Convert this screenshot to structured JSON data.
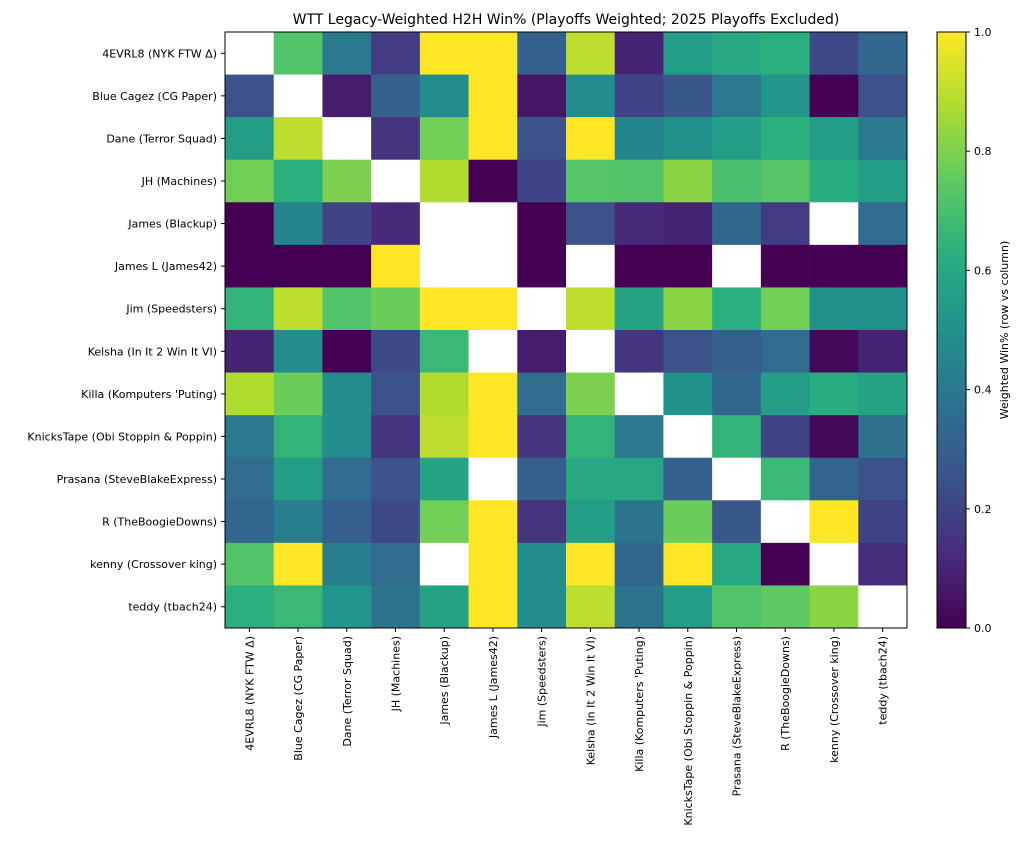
{
  "chart_data": {
    "type": "heatmap",
    "title": "WTT Legacy-Weighted H2H Win% (Playoffs Weighted; 2025 Playoffs Excluded)",
    "xlabel": "",
    "ylabel": "",
    "rows": [
      "4EVRL8 (NYK FTW Δ)",
      "Blue Cagez (CG Paper)",
      "Dane (Terror Squad)",
      "JH (Machines)",
      "James (Blackup)",
      "James L (James42)",
      "Jim (Speedsters)",
      "Kelsha (In It 2 Win It VI)",
      "Killa (Komputers 'Puting)",
      "KnicksTape (Obi Stoppin & Poppin)",
      "Prasana (SteveBlakeExpress)",
      "R (TheBoogieDowns)",
      "kenny (Crossover king)",
      "teddy (tbach24)"
    ],
    "columns": [
      "4EVRL8 (NYK FTW Δ)",
      "Blue Cagez (CG Paper)",
      "Dane (Terror Squad)",
      "JH (Machines)",
      "James (Blackup)",
      "James L (James42)",
      "Jim (Speedsters)",
      "Kelsha (In It 2 Win It VI)",
      "Killa (Komputers 'Puting)",
      "KnicksTape (Obi Stoppin & Poppin)",
      "Prasana (SteveBlakeExpress)",
      "R (TheBoogieDowns)",
      "kenny (Crossover king)",
      "teddy (tbach24)"
    ],
    "values": [
      [
        null,
        0.72,
        0.4,
        0.18,
        1.0,
        1.0,
        0.3,
        0.9,
        0.1,
        0.55,
        0.6,
        0.63,
        0.22,
        0.33
      ],
      [
        0.25,
        null,
        0.08,
        0.3,
        0.48,
        1.0,
        0.06,
        0.48,
        0.2,
        0.27,
        0.4,
        0.52,
        0.0,
        0.25
      ],
      [
        0.55,
        0.9,
        null,
        0.15,
        0.78,
        1.0,
        0.25,
        1.0,
        0.45,
        0.5,
        0.55,
        0.63,
        0.55,
        0.4
      ],
      [
        0.78,
        0.63,
        0.8,
        null,
        0.88,
        0.0,
        0.2,
        0.73,
        0.72,
        0.82,
        0.7,
        0.73,
        0.62,
        0.55
      ],
      [
        0.0,
        0.45,
        0.2,
        0.12,
        null,
        null,
        0.0,
        0.25,
        0.12,
        0.1,
        0.33,
        0.18,
        null,
        0.35
      ],
      [
        0.0,
        0.0,
        0.0,
        1.0,
        null,
        null,
        0.0,
        null,
        0.0,
        0.0,
        null,
        0.0,
        0.0,
        0.0
      ],
      [
        0.65,
        0.9,
        0.72,
        0.77,
        1.0,
        1.0,
        null,
        0.9,
        0.58,
        0.82,
        0.63,
        0.78,
        0.5,
        0.5
      ],
      [
        0.1,
        0.48,
        0.0,
        0.22,
        0.67,
        null,
        0.08,
        null,
        0.15,
        0.25,
        0.3,
        0.35,
        0.02,
        0.1
      ],
      [
        0.88,
        0.77,
        0.48,
        0.25,
        0.88,
        1.0,
        0.35,
        0.8,
        null,
        0.5,
        0.33,
        0.55,
        0.62,
        0.58
      ],
      [
        0.4,
        0.65,
        0.48,
        0.15,
        0.9,
        1.0,
        0.15,
        0.65,
        0.4,
        null,
        0.65,
        0.2,
        0.02,
        0.37
      ],
      [
        0.35,
        0.55,
        0.35,
        0.25,
        0.58,
        null,
        0.3,
        0.6,
        0.6,
        0.3,
        null,
        0.67,
        0.32,
        0.25
      ],
      [
        0.33,
        0.42,
        0.3,
        0.22,
        0.78,
        1.0,
        0.15,
        0.55,
        0.38,
        0.77,
        0.27,
        null,
        1.0,
        0.2
      ],
      [
        0.72,
        1.0,
        0.42,
        0.35,
        null,
        1.0,
        0.48,
        1.0,
        0.33,
        1.0,
        0.6,
        0.0,
        null,
        0.13
      ],
      [
        0.63,
        0.67,
        0.52,
        0.38,
        0.58,
        1.0,
        0.48,
        0.9,
        0.38,
        0.55,
        0.72,
        0.75,
        0.82,
        null
      ]
    ],
    "zlim": [
      0.0,
      1.0
    ],
    "colormap": "viridis",
    "colorbar": {
      "label": "Weighted Win% (row vs column)",
      "ticks": [
        "0.0",
        "0.2",
        "0.4",
        "0.6",
        "0.8",
        "1.0"
      ]
    },
    "grid": false,
    "missing_color": "#ffffff"
  }
}
